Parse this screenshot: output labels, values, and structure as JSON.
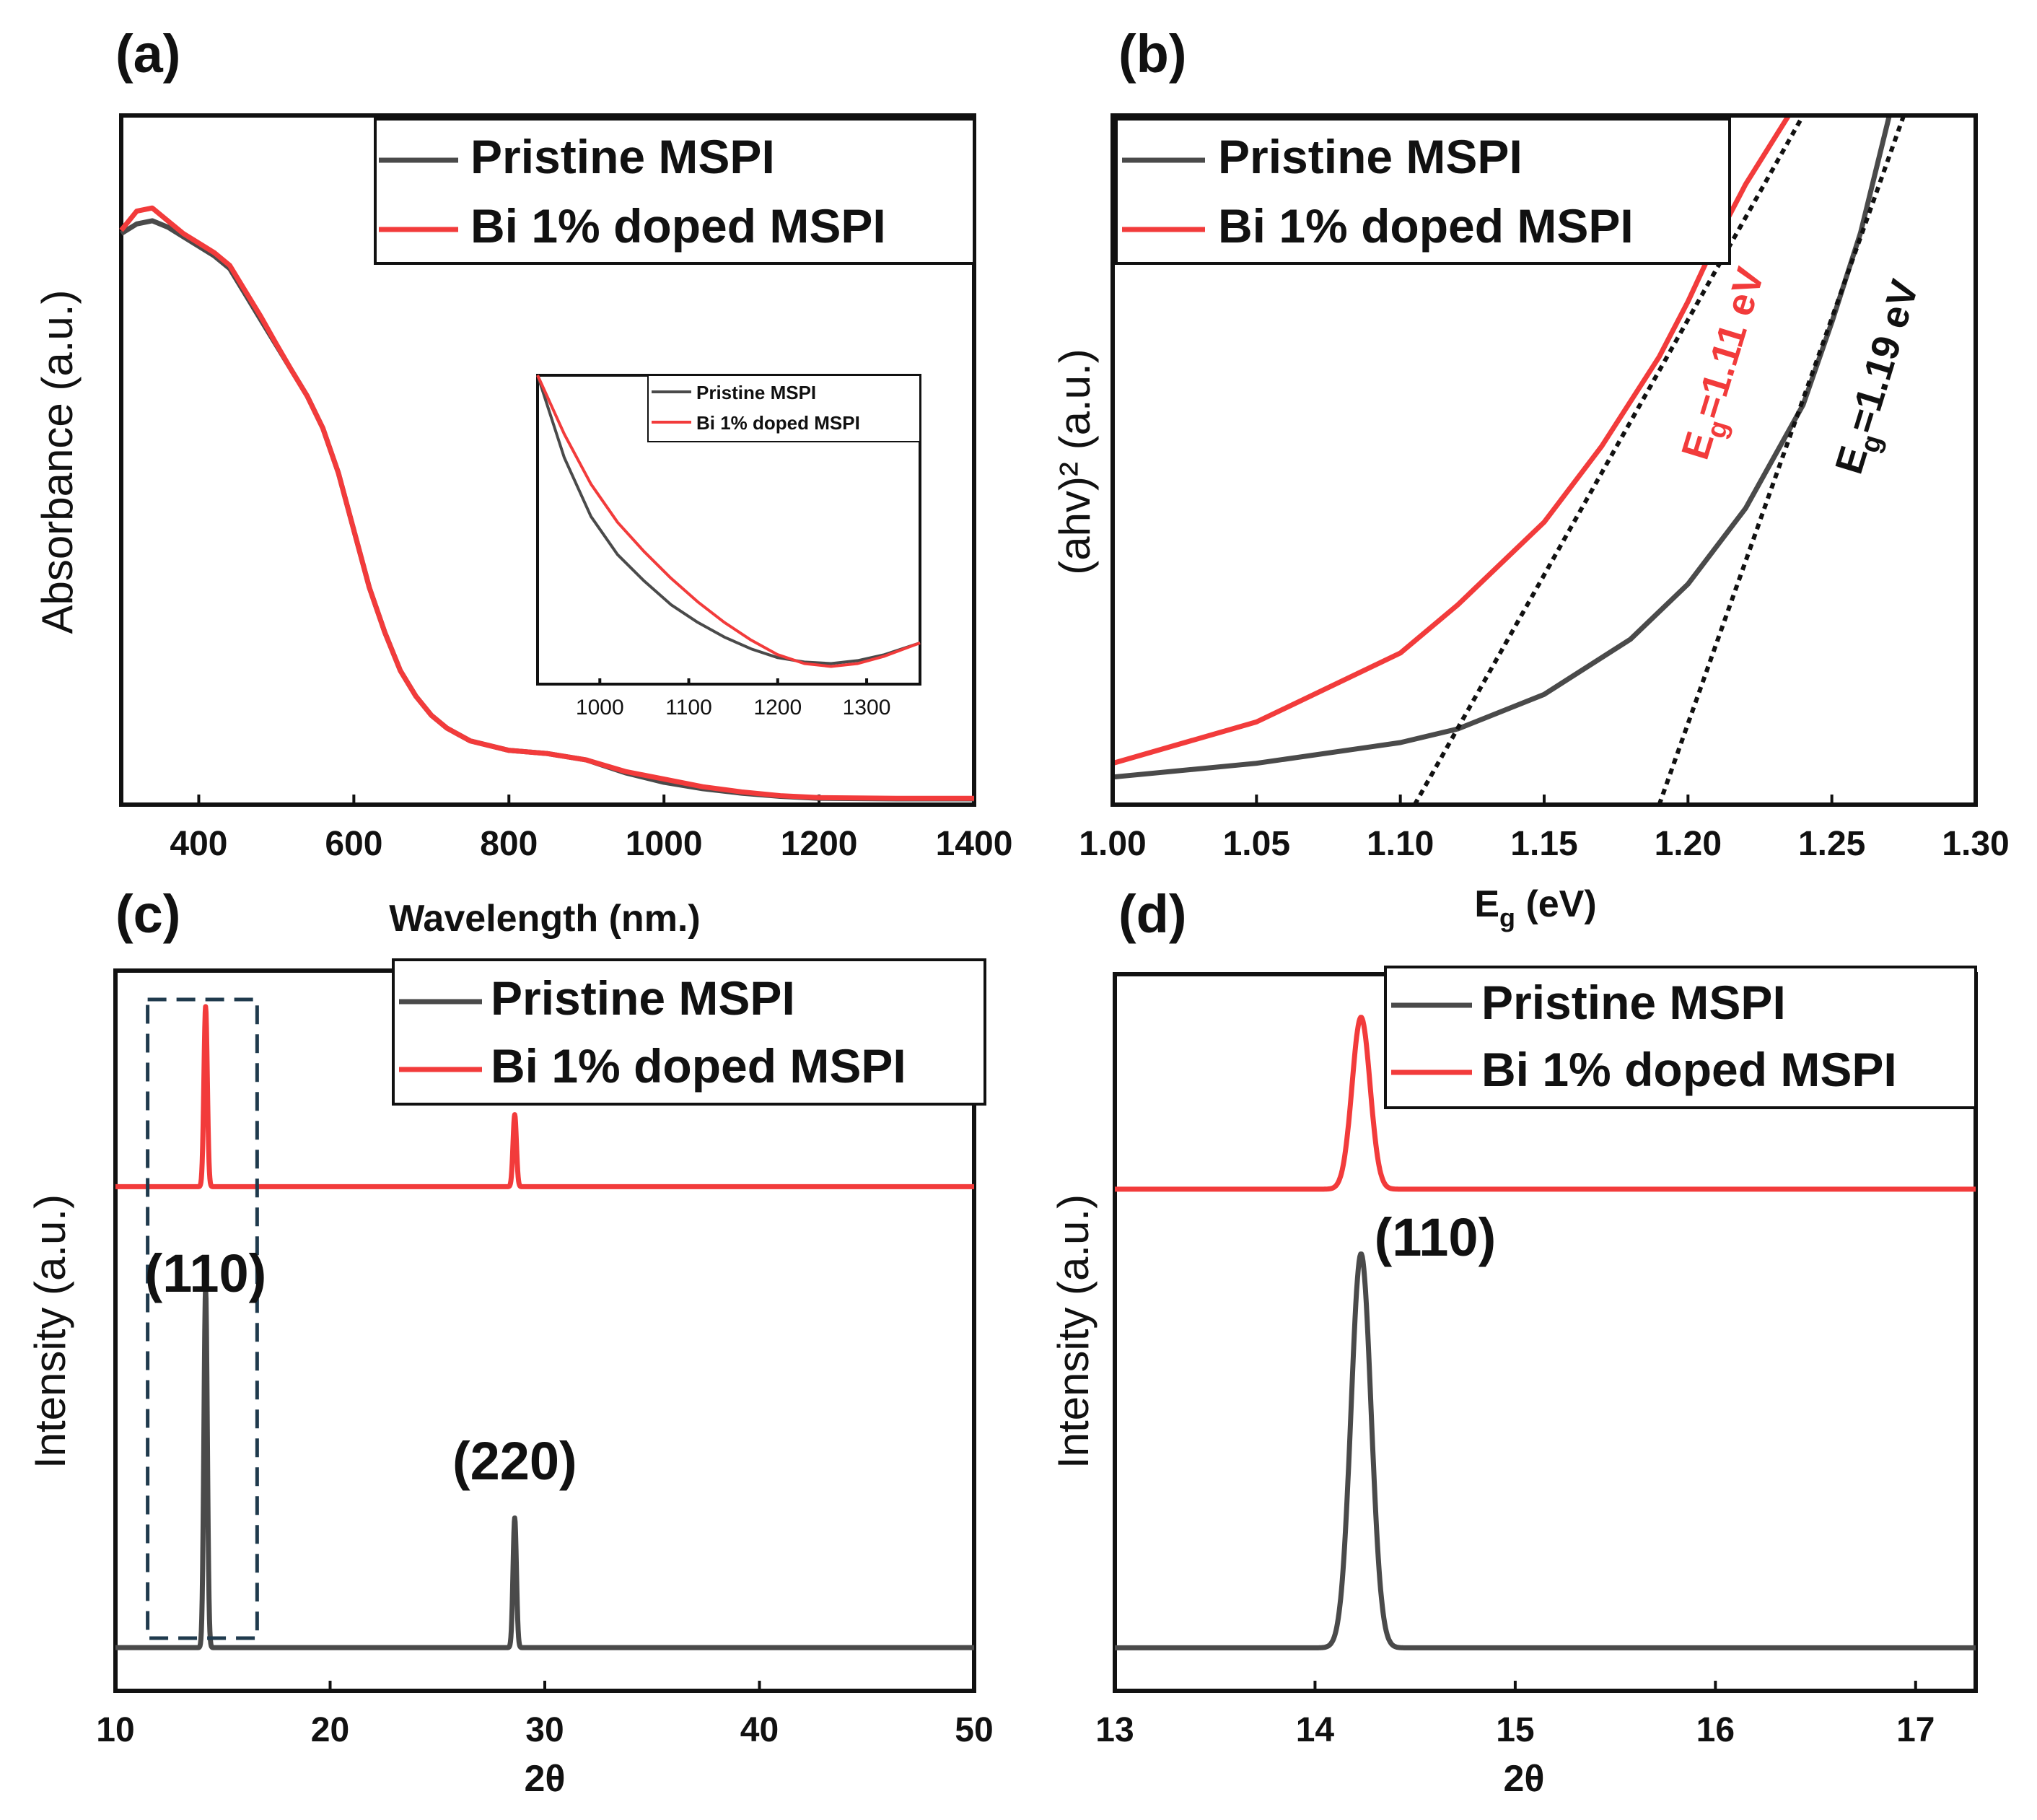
{
  "colors": {
    "pristine": "#4a4a4a",
    "doped": "#f23b3b",
    "axis": "#111111",
    "box": "#1f3a4d"
  },
  "legend": {
    "pristine": "Pristine MSPI",
    "doped": "Bi 1% doped MSPI"
  },
  "chart_data": [
    {
      "id": "a",
      "panel_label": "(a)",
      "type": "line",
      "title": "",
      "xlabel": "Wavelength (nm.)",
      "ylabel": "Absorbance (a.u.)",
      "xlim": [
        300,
        1400
      ],
      "ylim": [
        0,
        1
      ],
      "xticks": [
        400,
        600,
        800,
        1000,
        1200,
        1400
      ],
      "legend_position": "top-right",
      "series": [
        {
          "name": "Pristine MSPI",
          "x": [
            300,
            320,
            340,
            360,
            380,
            400,
            420,
            440,
            460,
            480,
            500,
            520,
            540,
            560,
            580,
            600,
            620,
            640,
            660,
            680,
            700,
            720,
            750,
            800,
            850,
            900,
            950,
            1000,
            1050,
            1100,
            1150,
            1200,
            1300,
            1400
          ],
          "y": [
            0.895,
            0.91,
            0.915,
            0.905,
            0.89,
            0.875,
            0.86,
            0.84,
            0.8,
            0.76,
            0.72,
            0.68,
            0.64,
            0.59,
            0.52,
            0.43,
            0.34,
            0.27,
            0.21,
            0.17,
            0.14,
            0.12,
            0.1,
            0.085,
            0.08,
            0.07,
            0.05,
            0.035,
            0.025,
            0.018,
            0.013,
            0.01,
            0.009,
            0.009
          ]
        },
        {
          "name": "Bi 1% doped MSPI",
          "x": [
            300,
            320,
            340,
            360,
            380,
            400,
            420,
            440,
            460,
            480,
            500,
            520,
            540,
            560,
            580,
            600,
            620,
            640,
            660,
            680,
            700,
            720,
            750,
            800,
            850,
            900,
            950,
            1000,
            1050,
            1100,
            1150,
            1200,
            1300,
            1400
          ],
          "y": [
            0.9,
            0.93,
            0.935,
            0.915,
            0.895,
            0.88,
            0.865,
            0.845,
            0.805,
            0.765,
            0.722,
            0.68,
            0.64,
            0.59,
            0.52,
            0.43,
            0.34,
            0.27,
            0.21,
            0.17,
            0.14,
            0.12,
            0.1,
            0.085,
            0.08,
            0.07,
            0.052,
            0.04,
            0.028,
            0.02,
            0.014,
            0.011,
            0.01,
            0.01
          ]
        }
      ],
      "inset": {
        "type": "line",
        "xlim": [
          930,
          1360
        ],
        "xticks": [
          1000,
          1100,
          1200,
          1300
        ],
        "ylim": [
          0,
          1
        ],
        "legend_position": "top-right",
        "series": [
          {
            "name": "Pristine MSPI",
            "x": [
              930,
              960,
              990,
              1020,
              1050,
              1080,
              1110,
              1140,
              1170,
              1200,
              1230,
              1260,
              1290,
              1320,
              1360
            ],
            "y": [
              1.0,
              0.72,
              0.52,
              0.39,
              0.3,
              0.22,
              0.16,
              0.11,
              0.07,
              0.04,
              0.025,
              0.02,
              0.03,
              0.05,
              0.09
            ]
          },
          {
            "name": "Bi 1% doped MSPI",
            "x": [
              930,
              960,
              990,
              1020,
              1050,
              1080,
              1110,
              1140,
              1170,
              1200,
              1230,
              1260,
              1290,
              1320,
              1360
            ],
            "y": [
              1.0,
              0.8,
              0.63,
              0.5,
              0.4,
              0.31,
              0.23,
              0.16,
              0.1,
              0.05,
              0.02,
              0.01,
              0.02,
              0.045,
              0.09
            ]
          }
        ]
      }
    },
    {
      "id": "b",
      "panel_label": "(b)",
      "type": "line",
      "title": "",
      "xlabel": "E",
      "xlabel_sub": "g",
      "xlabel_tail": " (eV)",
      "ylabel": "(ahv)² (a.u.)",
      "xlim": [
        1.0,
        1.3
      ],
      "ylim": [
        0,
        1
      ],
      "xticks": [
        "1.00",
        "1.05",
        "1.10",
        "1.15",
        "1.20",
        "1.25",
        "1.30"
      ],
      "legend_position": "top-left",
      "series": [
        {
          "name": "Pristine MSPI",
          "x": [
            1.0,
            1.05,
            1.1,
            1.12,
            1.15,
            1.18,
            1.2,
            1.22,
            1.24,
            1.25,
            1.26,
            1.27
          ],
          "y": [
            0.04,
            0.06,
            0.09,
            0.11,
            0.16,
            0.24,
            0.32,
            0.43,
            0.58,
            0.7,
            0.83,
            1.0
          ]
        },
        {
          "name": "Bi 1% doped MSPI",
          "x": [
            1.0,
            1.05,
            1.1,
            1.12,
            1.15,
            1.17,
            1.19,
            1.2,
            1.21,
            1.22,
            1.235
          ],
          "y": [
            0.06,
            0.12,
            0.22,
            0.29,
            0.41,
            0.52,
            0.65,
            0.73,
            0.82,
            0.9,
            1.0
          ]
        }
      ],
      "tangents": [
        {
          "series": "Bi 1% doped MSPI",
          "x": [
            1.105,
            1.24
          ],
          "y": [
            0.0,
            1.0
          ],
          "label_E": "E",
          "label_g": "g",
          "label_value": "=1.11 eV"
        },
        {
          "series": "Pristine MSPI",
          "x": [
            1.19,
            1.275
          ],
          "y": [
            0.0,
            1.0
          ],
          "label_E": "E",
          "label_g": "g",
          "label_value": "=1.19 eV"
        }
      ]
    },
    {
      "id": "c",
      "panel_label": "(c)",
      "type": "line",
      "title": "",
      "xlabel": "2θ",
      "ylabel": "Intensity (a.u.)",
      "xlim": [
        10,
        50
      ],
      "ylim": [
        0,
        1
      ],
      "xticks": [
        10,
        20,
        30,
        40,
        50
      ],
      "legend_position": "top-right",
      "series": [
        {
          "name": "Pristine MSPI",
          "offset": 0.06,
          "peaks": [
            {
              "x": 14.2,
              "height": 0.5
            },
            {
              "x": 28.6,
              "height": 0.18
            }
          ]
        },
        {
          "name": "Bi 1% doped MSPI",
          "offset": 0.7,
          "peaks": [
            {
              "x": 14.2,
              "height": 0.25
            },
            {
              "x": 28.6,
              "height": 0.1
            }
          ]
        }
      ],
      "annotations": [
        {
          "text": "(110)",
          "x": 14.2
        },
        {
          "text": "(220)",
          "x": 28.6
        }
      ],
      "highlight_box": {
        "x": [
          11.5,
          16.6
        ]
      }
    },
    {
      "id": "d",
      "panel_label": "(d)",
      "type": "line",
      "title": "",
      "xlabel": "2θ",
      "ylabel": "Intensity (a.u.)",
      "xlim": [
        13,
        17.3
      ],
      "ylim": [
        0,
        1
      ],
      "xticks": [
        13,
        14,
        15,
        16,
        17
      ],
      "legend_position": "top-right",
      "series": [
        {
          "name": "Pristine MSPI",
          "offset": 0.06,
          "peaks": [
            {
              "x": 14.23,
              "height": 0.55,
              "width": 0.05
            }
          ]
        },
        {
          "name": "Bi 1% doped MSPI",
          "offset": 0.7,
          "peaks": [
            {
              "x": 14.23,
              "height": 0.24,
              "width": 0.045
            }
          ]
        }
      ],
      "annotations": [
        {
          "text": "(110)",
          "x": 14.6
        }
      ]
    }
  ]
}
